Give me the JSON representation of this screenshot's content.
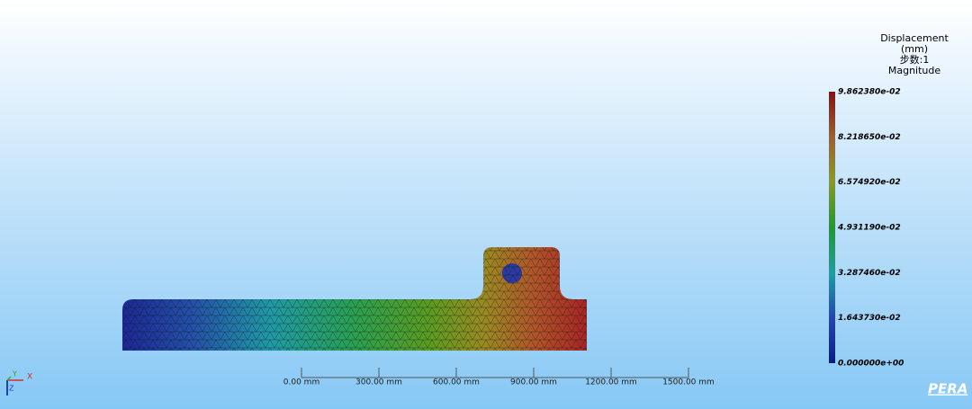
{
  "legend": {
    "title_lines": [
      "Displacement",
      "(mm)",
      "步数:1",
      "Magnitude"
    ],
    "labels": [
      "9.862380e-02",
      "8.218650e-02",
      "6.574920e-02",
      "4.931190e-02",
      "3.287460e-02",
      "1.643730e-02",
      "0.000000e+00"
    ]
  },
  "scale_bar": {
    "labels": [
      "0.00 mm",
      "300.00 mm",
      "600.00 mm",
      "900.00 mm",
      "1200.00 mm",
      "1500.00 mm"
    ]
  },
  "triad": {
    "y": "Y",
    "x": "X",
    "z": "Z"
  },
  "logo": "PERA"
}
